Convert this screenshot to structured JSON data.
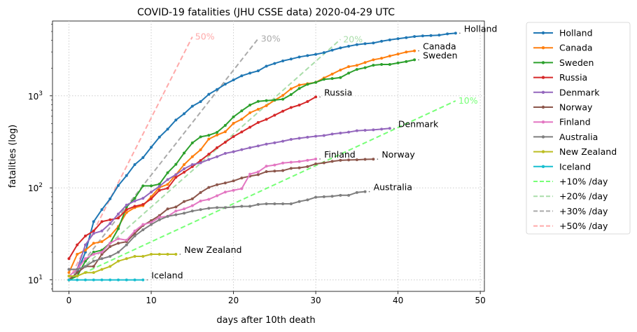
{
  "chart_data": {
    "type": "line",
    "title": "COVID-19 fatalities (JHU CSSE data) 2020-04-29 UTC",
    "xlabel": "days after 10th death",
    "ylabel": "fatalities (log)",
    "xlim": [
      -2,
      50.5
    ],
    "ylim": [
      7.5,
      6500
    ],
    "y_scale": "log",
    "x_ticks": [
      0,
      10,
      20,
      30,
      40,
      50
    ],
    "y_ticks": [
      {
        "value": 10,
        "label": "10",
        "sup": "1"
      },
      {
        "value": 100,
        "label": "10",
        "sup": "2"
      },
      {
        "value": 1000,
        "label": "10",
        "sup": "3"
      }
    ],
    "grid": true,
    "legend_position": "outside-right",
    "series": [
      {
        "name": "Holland",
        "color": "#1f77b4",
        "end_label": "Holland",
        "values": [
          10,
          12,
          20,
          43,
          58,
          76,
          106,
          136,
          179,
          213,
          276,
          356,
          434,
          546,
          639,
          771,
          864,
          1039,
          1173,
          1339,
          1487,
          1651,
          1766,
          1867,
          2101,
          2248,
          2396,
          2511,
          2643,
          2737,
          2823,
          2945,
          3134,
          3315,
          3459,
          3601,
          3684,
          3751,
          3916,
          4054,
          4177,
          4289,
          4409,
          4475,
          4518,
          4566,
          4711,
          4795
        ]
      },
      {
        "name": "Canada",
        "color": "#ff7f0e",
        "end_label": "Canada",
        "values": [
          12,
          19,
          21,
          25,
          26,
          30,
          38,
          54,
          61,
          64,
          80,
          101,
          109,
          139,
          179,
          218,
          259,
          339,
          375,
          407,
          503,
          557,
          654,
          714,
          781,
          895,
          1010,
          1194,
          1310,
          1354,
          1401,
          1563,
          1725,
          1908,
          2075,
          2147,
          2302,
          2465,
          2560,
          2707,
          2841,
          2992,
          3082
        ]
      },
      {
        "name": "Sweden",
        "color": "#2ca02c",
        "end_label": "Sweden",
        "values": [
          10,
          11,
          16,
          20,
          21,
          25,
          36,
          62,
          77,
          105,
          105,
          110,
          146,
          180,
          239,
          308,
          358,
          373,
          401,
          477,
          591,
          687,
          793,
          870,
          887,
          899,
          919,
          1033,
          1203,
          1333,
          1400,
          1511,
          1540,
          1580,
          1765,
          1937,
          2021,
          2152,
          2192,
          2194,
          2274,
          2355,
          2462
        ]
      },
      {
        "name": "Russia",
        "color": "#d62728",
        "end_label": "Russia",
        "values": [
          17,
          24,
          30,
          34,
          43,
          45,
          47,
          58,
          63,
          66,
          76,
          94,
          99,
          130,
          148,
          170,
          198,
          232,
          273,
          313,
          361,
          405,
          456,
          513,
          555,
          615,
          681,
          747,
          794,
          867,
          972
        ]
      },
      {
        "name": "Denmark",
        "color": "#9467bd",
        "end_label": "Denmark",
        "values": [
          13,
          13,
          24,
          32,
          34,
          41,
          52,
          65,
          72,
          77,
          90,
          104,
          123,
          139,
          161,
          179,
          187,
          203,
          218,
          237,
          247,
          260,
          273,
          285,
          299,
          309,
          321,
          336,
          346,
          355,
          364,
          370,
          384,
          394,
          403,
          418,
          422,
          427,
          434,
          443
        ]
      },
      {
        "name": "Norway",
        "color": "#8c564b",
        "end_label": "Norway",
        "values": [
          10,
          12,
          14,
          14,
          19,
          23,
          25,
          26,
          32,
          39,
          44,
          50,
          59,
          62,
          71,
          76,
          89,
          101,
          108,
          113,
          119,
          128,
          134,
          139,
          150,
          152,
          154,
          163,
          165,
          170,
          182,
          187,
          194,
          199,
          201,
          202,
          204,
          205
        ]
      },
      {
        "name": "Finland",
        "color": "#e377c2",
        "end_label": "Finland",
        "values": [
          11,
          13,
          17,
          19,
          20,
          25,
          28,
          27,
          34,
          40,
          42,
          48,
          49,
          56,
          59,
          64,
          72,
          75,
          82,
          90,
          94,
          98,
          141,
          149,
          172,
          177,
          186,
          190,
          193,
          199,
          206
        ]
      },
      {
        "name": "Australia",
        "color": "#7f7f7f",
        "end_label": "Australia",
        "values": [
          13,
          13,
          14,
          16,
          17,
          18,
          20,
          24,
          30,
          35,
          40,
          45,
          49,
          51,
          53,
          56,
          58,
          60,
          61,
          61,
          62,
          63,
          63,
          66,
          67,
          67,
          67,
          67,
          71,
          74,
          79,
          80,
          81,
          83,
          83,
          89,
          91
        ]
      },
      {
        "name": "New Zealand",
        "color": "#bcbd22",
        "end_label": "New Zealand",
        "values": [
          11,
          11,
          12,
          12,
          13,
          14,
          16,
          17,
          18,
          18,
          19,
          19,
          19,
          19
        ]
      },
      {
        "name": "Iceland",
        "color": "#17becf",
        "end_label": "Iceland",
        "values": [
          10,
          10,
          10,
          10,
          10,
          10,
          10,
          10,
          10,
          10
        ]
      }
    ],
    "reference_lines": [
      {
        "name": "+10% /day",
        "color": "#77ff77",
        "rate": 0.1,
        "x_end": 47,
        "end_label": "10%"
      },
      {
        "name": "+20% /day",
        "color": "#aaddaa",
        "rate": 0.2,
        "x_end": 33,
        "end_label": "20%"
      },
      {
        "name": "+30% /day",
        "color": "#aaaaaa",
        "rate": 0.3,
        "x_end": 23,
        "end_label": "30%"
      },
      {
        "name": "+50% /day",
        "color": "#ffaaaa",
        "rate": 0.5,
        "x_end": 15,
        "end_label": "50%"
      }
    ]
  }
}
